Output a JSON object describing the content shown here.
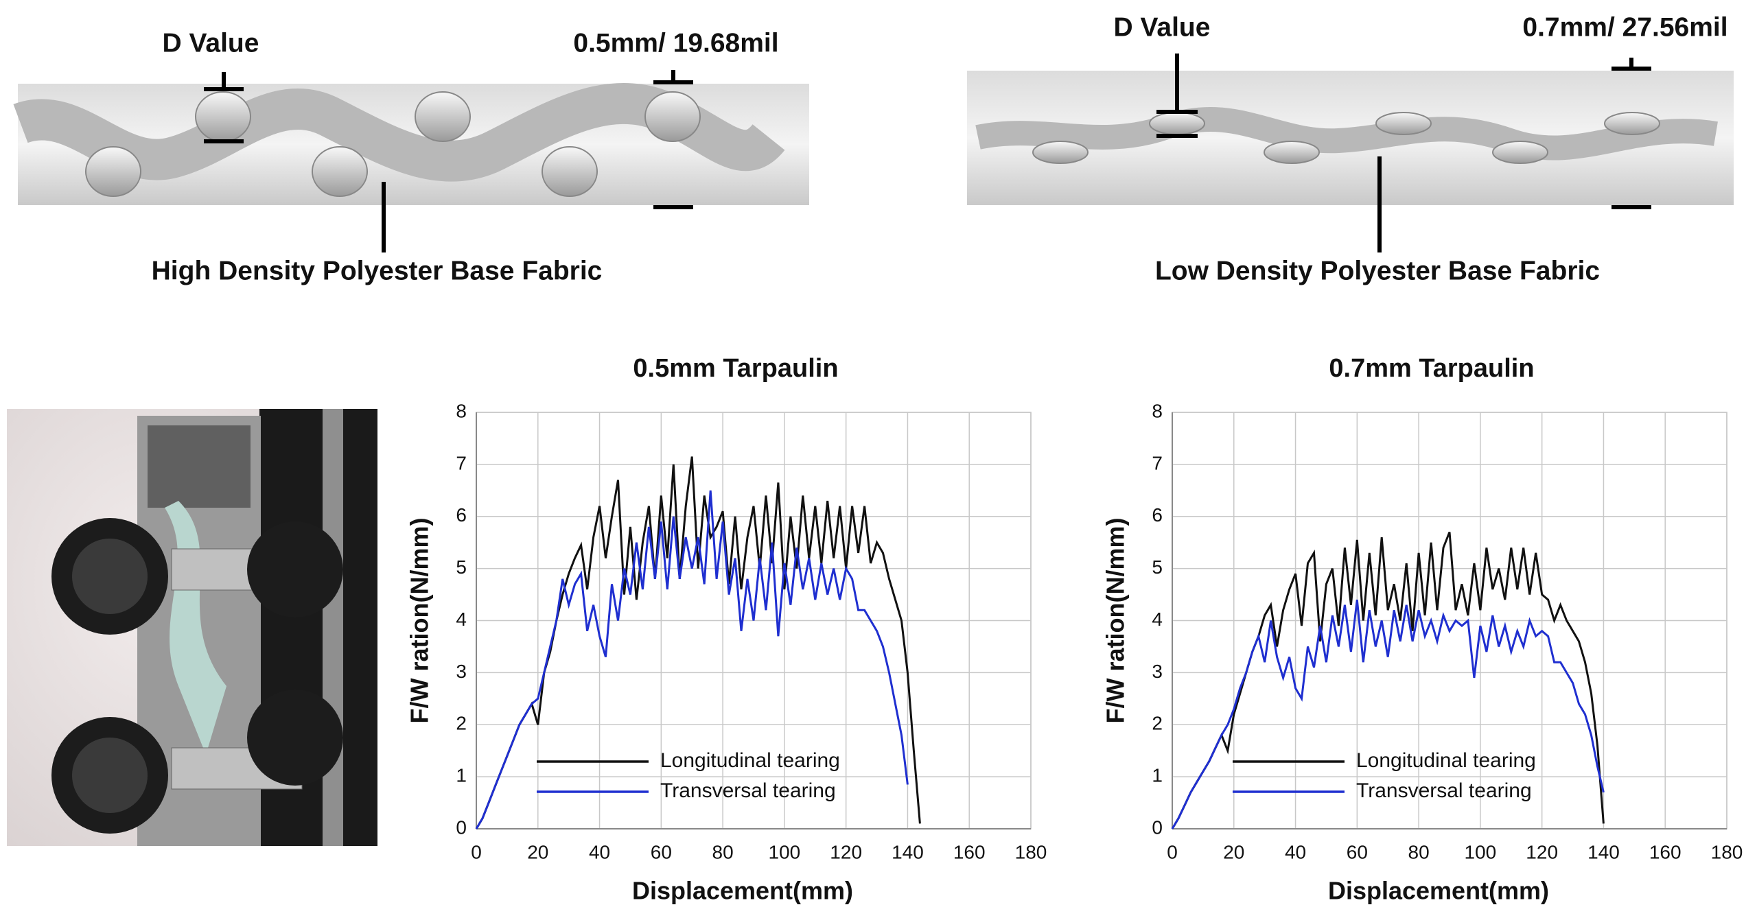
{
  "diagrams": [
    {
      "d_label": "D Value",
      "thickness": "0.5mm/ 19.68mil",
      "caption": "High Density Polyester Base Fabric"
    },
    {
      "d_label": "D Value",
      "thickness": "0.7mm/ 27.56mil",
      "caption": "Low Density Polyester Base Fabric"
    }
  ],
  "chart_data": [
    {
      "type": "line",
      "title": "0.5mm Tarpaulin",
      "x_label": "Displacement(mm)",
      "y_label": "F/W ration(N/mm)",
      "xlim": [
        0,
        180
      ],
      "xticks": [
        0,
        20,
        40,
        60,
        80,
        100,
        120,
        140,
        160,
        180
      ],
      "ylim": [
        0,
        8
      ],
      "yticks": [
        0,
        1,
        2,
        3,
        4,
        5,
        6,
        7,
        8
      ],
      "grid": true,
      "legend": "lower left",
      "x": [
        0,
        2,
        4,
        6,
        8,
        10,
        12,
        14,
        16,
        18,
        20,
        22,
        24,
        26,
        28,
        30,
        32,
        34,
        36,
        38,
        40,
        42,
        44,
        46,
        48,
        50,
        52,
        54,
        56,
        58,
        60,
        62,
        64,
        66,
        68,
        70,
        72,
        74,
        76,
        78,
        80,
        82,
        84,
        86,
        88,
        90,
        92,
        94,
        96,
        98,
        100,
        102,
        104,
        106,
        108,
        110,
        112,
        114,
        116,
        118,
        120,
        122,
        124,
        126,
        128,
        130,
        132,
        134,
        136,
        138,
        140,
        142,
        144
      ],
      "series": [
        {
          "name": "Longitudinal tearing",
          "color": "#111111",
          "values": [
            0,
            0.2,
            0.5,
            0.8,
            1.1,
            1.4,
            1.7,
            2.0,
            2.2,
            2.4,
            2.0,
            3.0,
            3.4,
            4.0,
            4.5,
            4.9,
            5.2,
            5.45,
            4.6,
            5.6,
            6.2,
            5.2,
            6.0,
            6.7,
            4.5,
            5.8,
            4.4,
            5.5,
            6.2,
            4.8,
            6.4,
            5.2,
            7.0,
            4.8,
            6.2,
            7.15,
            5.0,
            6.4,
            5.6,
            5.8,
            6.1,
            4.7,
            6.0,
            4.6,
            5.6,
            6.2,
            5.0,
            6.4,
            5.1,
            6.65,
            4.6,
            6.0,
            5.0,
            6.4,
            5.2,
            6.2,
            5.1,
            6.3,
            5.2,
            6.2,
            5.0,
            6.2,
            5.3,
            6.2,
            5.1,
            5.5,
            5.3,
            4.8,
            4.4,
            4.0,
            3.0,
            1.5,
            0.1
          ]
        },
        {
          "name": "Transversal tearing",
          "color": "#1f2fd0",
          "values": [
            0,
            0.2,
            0.5,
            0.8,
            1.1,
            1.4,
            1.7,
            2.0,
            2.2,
            2.4,
            2.5,
            3.0,
            3.5,
            4.0,
            4.8,
            4.3,
            4.7,
            4.9,
            3.8,
            4.3,
            3.7,
            3.3,
            4.7,
            4.0,
            5.0,
            4.5,
            5.5,
            4.6,
            5.8,
            4.8,
            5.9,
            4.6,
            6.0,
            4.8,
            5.6,
            5.0,
            5.6,
            4.7,
            6.5,
            4.8,
            5.9,
            4.5,
            5.2,
            3.8,
            4.8,
            4.0,
            5.2,
            4.2,
            5.5,
            3.7,
            5.1,
            4.3,
            5.4,
            4.6,
            5.2,
            4.4,
            5.1,
            4.5,
            5.0,
            4.4,
            5.0,
            4.8,
            4.2,
            4.2,
            4.0,
            3.8,
            3.5,
            3.0,
            2.4,
            1.8,
            0.85,
            null,
            null
          ]
        }
      ]
    },
    {
      "type": "line",
      "title": "0.7mm Tarpaulin",
      "x_label": "Displacement(mm)",
      "y_label": "F/W ration(N/mm)",
      "xlim": [
        0,
        180
      ],
      "xticks": [
        0,
        20,
        40,
        60,
        80,
        100,
        120,
        140,
        160,
        180
      ],
      "ylim": [
        0,
        8
      ],
      "yticks": [
        0,
        1,
        2,
        3,
        4,
        5,
        6,
        7,
        8
      ],
      "grid": true,
      "legend": "lower left",
      "x": [
        0,
        2,
        4,
        6,
        8,
        10,
        12,
        14,
        16,
        18,
        20,
        22,
        24,
        26,
        28,
        30,
        32,
        34,
        36,
        38,
        40,
        42,
        44,
        46,
        48,
        50,
        52,
        54,
        56,
        58,
        60,
        62,
        64,
        66,
        68,
        70,
        72,
        74,
        76,
        78,
        80,
        82,
        84,
        86,
        88,
        90,
        92,
        94,
        96,
        98,
        100,
        102,
        104,
        106,
        108,
        110,
        112,
        114,
        116,
        118,
        120,
        122,
        124,
        126,
        128,
        130,
        132,
        134,
        136,
        138,
        140,
        142,
        144
      ],
      "series": [
        {
          "name": "Longitudinal tearing",
          "color": "#111111",
          "values": [
            0,
            0.2,
            0.45,
            0.7,
            0.9,
            1.1,
            1.3,
            1.55,
            1.8,
            1.5,
            2.2,
            2.6,
            3.0,
            3.4,
            3.7,
            4.1,
            4.3,
            3.5,
            4.2,
            4.6,
            4.9,
            3.9,
            5.1,
            5.3,
            3.6,
            4.7,
            5.0,
            3.9,
            5.4,
            4.3,
            5.55,
            4.0,
            5.3,
            4.1,
            5.6,
            4.2,
            4.7,
            4.0,
            5.1,
            3.8,
            5.3,
            4.1,
            5.5,
            4.2,
            5.4,
            5.7,
            4.2,
            4.7,
            4.1,
            5.1,
            4.2,
            5.4,
            4.6,
            5.0,
            4.4,
            5.4,
            4.6,
            5.4,
            4.5,
            5.3,
            4.5,
            4.4,
            4.0,
            4.3,
            4.0,
            3.8,
            3.6,
            3.2,
            2.6,
            1.6,
            0.1,
            null,
            null
          ]
        },
        {
          "name": "Transversal tearing",
          "color": "#1f2fd0",
          "values": [
            0,
            0.2,
            0.45,
            0.7,
            0.9,
            1.1,
            1.3,
            1.55,
            1.8,
            2.0,
            2.3,
            2.7,
            3.0,
            3.4,
            3.7,
            3.2,
            4.0,
            3.3,
            2.9,
            3.3,
            2.7,
            2.5,
            3.5,
            3.1,
            3.9,
            3.2,
            4.1,
            3.5,
            4.3,
            3.4,
            4.4,
            3.2,
            4.2,
            3.5,
            4.0,
            3.3,
            4.2,
            3.6,
            4.3,
            3.6,
            4.2,
            3.7,
            4.0,
            3.6,
            4.1,
            3.8,
            4.0,
            3.9,
            4.0,
            2.9,
            3.9,
            3.4,
            4.1,
            3.5,
            3.9,
            3.4,
            3.8,
            3.5,
            4.0,
            3.7,
            3.8,
            3.7,
            3.2,
            3.2,
            3.0,
            2.8,
            2.4,
            2.2,
            1.8,
            1.2,
            0.7,
            null,
            null
          ]
        }
      ]
    }
  ]
}
